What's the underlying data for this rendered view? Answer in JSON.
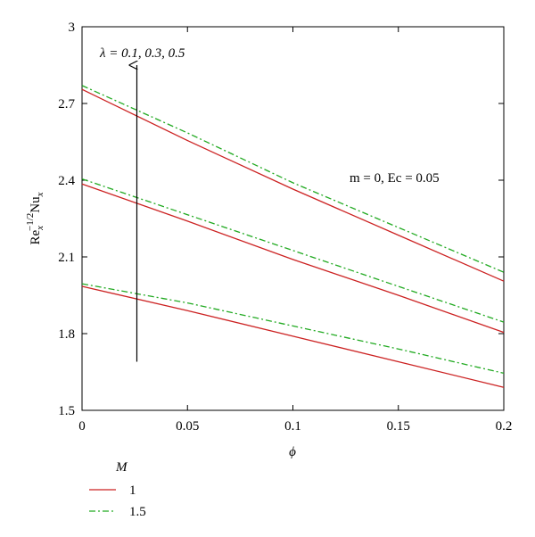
{
  "chart_data": {
    "type": "line",
    "xlabel": "ϕ",
    "ylabel": {
      "base": "Re",
      "sub": "x",
      "sup": "−1/2",
      "mid": "Nu",
      "sub2": "x"
    },
    "xlim": [
      0,
      0.2
    ],
    "ylim": [
      1.5,
      3.0
    ],
    "x_ticks": [
      0,
      0.05,
      0.1,
      0.15,
      0.2
    ],
    "x_tick_labels": [
      "0",
      "0.05",
      "0.1",
      "0.15",
      "0.2"
    ],
    "y_ticks": [
      1.5,
      1.8,
      2.1,
      2.4,
      2.7,
      3.0
    ],
    "y_tick_labels": [
      "1.5",
      "1.8",
      "2.1",
      "2.4",
      "2.7",
      "3"
    ],
    "grid": false,
    "annotations": {
      "lambda_text": "λ = 0.1, 0.3, 0.5",
      "params_text": "m = 0, Ec = 0.05"
    },
    "arrow": {
      "x": 0.026,
      "y_start": 1.69,
      "y_end": 2.85
    },
    "legend": {
      "title": "M",
      "entries": [
        {
          "label": "1",
          "color": "#cc2222",
          "dash": "solid"
        },
        {
          "label": "1.5",
          "color": "#22aa22",
          "dash": "dashdot"
        }
      ]
    },
    "x": [
      0,
      0.05,
      0.1,
      0.15,
      0.2
    ],
    "series": [
      {
        "group": "M=1",
        "color": "#cc2222",
        "dash": "solid",
        "values": [
          1.985,
          1.89,
          1.79,
          1.69,
          1.59
        ]
      },
      {
        "group": "M=1.5",
        "color": "#22aa22",
        "dash": "dashdot",
        "values": [
          1.995,
          1.92,
          1.83,
          1.74,
          1.645
        ]
      },
      {
        "group": "M=1",
        "color": "#cc2222",
        "dash": "solid",
        "values": [
          2.385,
          2.24,
          2.09,
          1.95,
          1.805
        ]
      },
      {
        "group": "M=1.5",
        "color": "#22aa22",
        "dash": "dashdot",
        "values": [
          2.405,
          2.265,
          2.125,
          1.985,
          1.845
        ]
      },
      {
        "group": "M=1",
        "color": "#cc2222",
        "dash": "solid",
        "values": [
          2.755,
          2.555,
          2.365,
          2.185,
          2.005
        ]
      },
      {
        "group": "M=1.5",
        "color": "#22aa22",
        "dash": "dashdot",
        "values": [
          2.77,
          2.585,
          2.39,
          2.215,
          2.04
        ]
      }
    ]
  }
}
